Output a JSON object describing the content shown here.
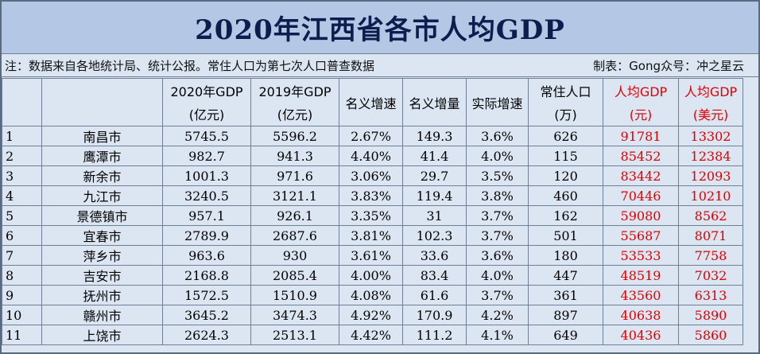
{
  "title": "2020年江西省各市人均GDP",
  "note_left": "注：数据来自各地统计局、统计公报。常住人口为第七次人口普查数据",
  "note_right": "制表：Gong众号：冲之星云",
  "headers": {
    "gdp2020_a": "2020年GDP",
    "gdp2020_b": "(亿元)",
    "gdp2019_a": "2019年GDP",
    "gdp2019_b": "(亿元)",
    "nominal_rate": "名义增速",
    "nominal_amt": "名义增量",
    "real_rate": "实际增速",
    "pop_a": "常住人口",
    "pop_b": "(万)",
    "pcgdp_cny_a": "人均GDP",
    "pcgdp_cny_b": "(元)",
    "pcgdp_usd_a": "人均GDP",
    "pcgdp_usd_b": "(美元)"
  },
  "colors": {
    "title_bg": "#b4c8e6",
    "title_text": "#0c1e4d",
    "cell_bg": "#dbe6f2",
    "highlight": "#e00000"
  },
  "rows": [
    {
      "idx": "1",
      "city": "南昌市",
      "gdp2020": "5745.5",
      "gdp2019": "5596.2",
      "nrate": "2.67%",
      "namt": "149.3",
      "rrate": "3.6%",
      "pop": "626",
      "pc_cny": "91781",
      "pc_usd": "13302"
    },
    {
      "idx": "2",
      "city": "鹰潭市",
      "gdp2020": "982.7",
      "gdp2019": "941.3",
      "nrate": "4.40%",
      "namt": "41.4",
      "rrate": "4.0%",
      "pop": "115",
      "pc_cny": "85452",
      "pc_usd": "12384"
    },
    {
      "idx": "3",
      "city": "新余市",
      "gdp2020": "1001.3",
      "gdp2019": "971.6",
      "nrate": "3.06%",
      "namt": "29.7",
      "rrate": "3.5%",
      "pop": "120",
      "pc_cny": "83442",
      "pc_usd": "12093"
    },
    {
      "idx": "4",
      "city": "九江市",
      "gdp2020": "3240.5",
      "gdp2019": "3121.1",
      "nrate": "3.83%",
      "namt": "119.4",
      "rrate": "3.8%",
      "pop": "460",
      "pc_cny": "70446",
      "pc_usd": "10210"
    },
    {
      "idx": "5",
      "city": "景德镇市",
      "gdp2020": "957.1",
      "gdp2019": "926.1",
      "nrate": "3.35%",
      "namt": "31",
      "rrate": "3.7%",
      "pop": "162",
      "pc_cny": "59080",
      "pc_usd": "8562"
    },
    {
      "idx": "6",
      "city": "宜春市",
      "gdp2020": "2789.9",
      "gdp2019": "2687.6",
      "nrate": "3.81%",
      "namt": "102.3",
      "rrate": "3.7%",
      "pop": "501",
      "pc_cny": "55687",
      "pc_usd": "8071"
    },
    {
      "idx": "7",
      "city": "萍乡市",
      "gdp2020": "963.6",
      "gdp2019": "930",
      "nrate": "3.61%",
      "namt": "33.6",
      "rrate": "3.6%",
      "pop": "180",
      "pc_cny": "53533",
      "pc_usd": "7758"
    },
    {
      "idx": "8",
      "city": "吉安市",
      "gdp2020": "2168.8",
      "gdp2019": "2085.4",
      "nrate": "4.00%",
      "namt": "83.4",
      "rrate": "4.0%",
      "pop": "447",
      "pc_cny": "48519",
      "pc_usd": "7032"
    },
    {
      "idx": "9",
      "city": "抚州市",
      "gdp2020": "1572.5",
      "gdp2019": "1510.9",
      "nrate": "4.08%",
      "namt": "61.6",
      "rrate": "3.7%",
      "pop": "361",
      "pc_cny": "43560",
      "pc_usd": "6313"
    },
    {
      "idx": "10",
      "city": "赣州市",
      "gdp2020": "3645.2",
      "gdp2019": "3474.3",
      "nrate": "4.92%",
      "namt": "170.9",
      "rrate": "4.2%",
      "pop": "897",
      "pc_cny": "40638",
      "pc_usd": "5890"
    },
    {
      "idx": "11",
      "city": "上饶市",
      "gdp2020": "2624.3",
      "gdp2019": "2513.1",
      "nrate": "4.42%",
      "namt": "111.2",
      "rrate": "4.1%",
      "pop": "649",
      "pc_cny": "40436",
      "pc_usd": "5860"
    }
  ]
}
